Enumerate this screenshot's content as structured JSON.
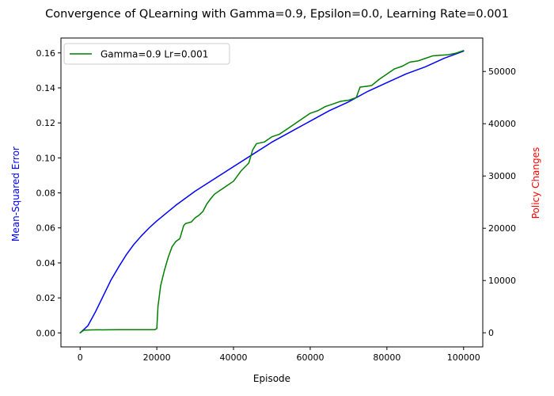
{
  "chart_data": {
    "type": "line",
    "title": "Convergence of QLearning with Gamma=0.9, Epsilon=0.0, Learning Rate=0.001",
    "xlabel": "Episode",
    "ylabel_left": "Mean-Squared Error",
    "ylabel_right": "Policy Changes",
    "xlim": [
      -5000,
      105000
    ],
    "ylim_left": [
      -0.008,
      0.1685
    ],
    "ylim_right": [
      -2700,
      56400
    ],
    "xticks": [
      0,
      20000,
      40000,
      60000,
      80000,
      100000
    ],
    "xtick_labels": [
      "0",
      "20000",
      "40000",
      "60000",
      "80000",
      "100000"
    ],
    "yticks_left": [
      0.0,
      0.02,
      0.04,
      0.06,
      0.08,
      0.1,
      0.12,
      0.14,
      0.16
    ],
    "ytick_labels_left": [
      "0.00",
      "0.02",
      "0.04",
      "0.06",
      "0.08",
      "0.10",
      "0.12",
      "0.14",
      "0.16"
    ],
    "yticks_right": [
      0,
      10000,
      20000,
      30000,
      40000,
      50000
    ],
    "ytick_labels_right": [
      "0",
      "10000",
      "20000",
      "30000",
      "40000",
      "50000"
    ],
    "grid": false,
    "legend_position": "top-left",
    "colors": {
      "ylabel_left": "#0000ff",
      "ylabel_right": "#ff0000"
    },
    "series": [
      {
        "name": "",
        "axis": "left",
        "color": "#0000ff",
        "x": [
          0,
          2000,
          4000,
          6000,
          8000,
          10000,
          12000,
          14000,
          16000,
          18000,
          20000,
          25000,
          30000,
          35000,
          40000,
          45000,
          50000,
          55000,
          60000,
          65000,
          70000,
          75000,
          80000,
          85000,
          90000,
          95000,
          100000
        ],
        "y": [
          0.0,
          0.004,
          0.012,
          0.021,
          0.03,
          0.0375,
          0.0445,
          0.0505,
          0.0555,
          0.06,
          0.064,
          0.073,
          0.081,
          0.088,
          0.095,
          0.102,
          0.109,
          0.115,
          0.121,
          0.127,
          0.132,
          0.138,
          0.143,
          0.148,
          0.152,
          0.157,
          0.161
        ]
      },
      {
        "name": "Gamma=0.9 Lr=0.001",
        "axis": "right",
        "color": "#008000",
        "x": [
          0,
          1000,
          3000,
          10000,
          19500,
          20000,
          20300,
          21000,
          22000,
          23000,
          24000,
          25000,
          26000,
          27000,
          27500,
          29000,
          30000,
          31000,
          32000,
          33000,
          34000,
          35000,
          36000,
          38000,
          40000,
          42000,
          44000,
          45000,
          46000,
          48000,
          50000,
          52000,
          54000,
          56000,
          58000,
          60000,
          62000,
          64000,
          66000,
          68000,
          70000,
          72000,
          73000,
          75000,
          76000,
          78000,
          80000,
          82000,
          84000,
          86000,
          88000,
          90000,
          92000,
          94000,
          96000,
          98000,
          100000
        ],
        "y": [
          0,
          500,
          550,
          600,
          600,
          800,
          5000,
          9000,
          12000,
          14500,
          16500,
          17500,
          18000,
          20500,
          20900,
          21200,
          22000,
          22500,
          23200,
          24600,
          25600,
          26500,
          27000,
          28000,
          29000,
          31000,
          32500,
          35000,
          36200,
          36500,
          37500,
          38000,
          39000,
          40000,
          41000,
          42000,
          42500,
          43300,
          43800,
          44300,
          44500,
          45000,
          47000,
          47200,
          47300,
          48500,
          49500,
          50500,
          51000,
          51800,
          52000,
          52500,
          53000,
          53100,
          53200,
          53500,
          54000
        ]
      }
    ]
  }
}
